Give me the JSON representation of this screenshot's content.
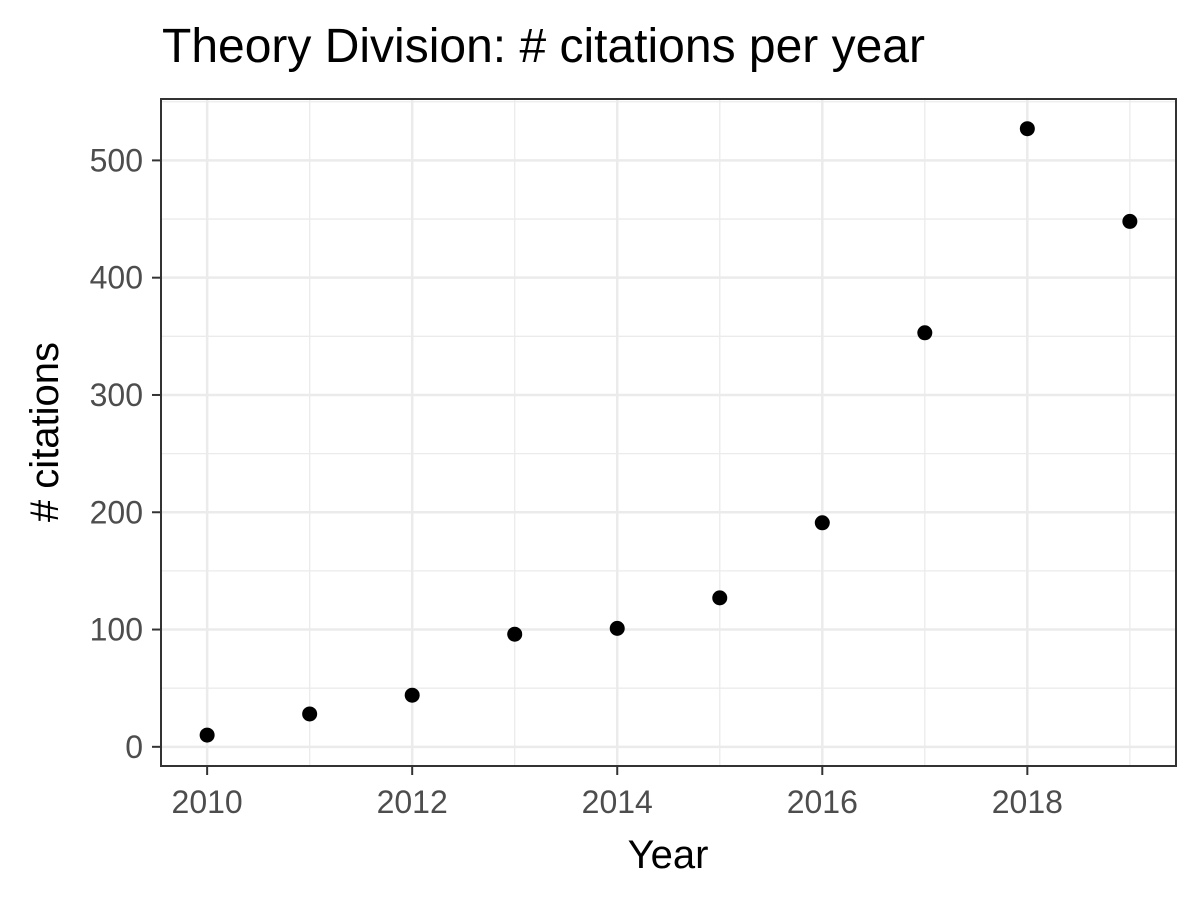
{
  "chart_data": {
    "type": "scatter",
    "title": "Theory Division: # citations per year",
    "xlabel": "Year",
    "ylabel": "# citations",
    "x": [
      2010,
      2011,
      2012,
      2013,
      2014,
      2015,
      2016,
      2017,
      2018,
      2019
    ],
    "y": [
      10,
      28,
      44,
      96,
      101,
      127,
      191,
      353,
      527,
      448
    ],
    "xlim": [
      2009.55,
      2019.45
    ],
    "ylim": [
      -16.35,
      552.35
    ],
    "x_ticks": [
      2010,
      2012,
      2014,
      2016,
      2018
    ],
    "y_ticks": [
      0,
      100,
      200,
      300,
      400,
      500
    ],
    "x_tick_labels": [
      "2010",
      "2012",
      "2014",
      "2016",
      "2018"
    ],
    "y_tick_labels": [
      "0",
      "100",
      "200",
      "300",
      "400",
      "500"
    ],
    "grid": true,
    "legend": "none",
    "colors": {
      "points": "#000000",
      "grid": "#ebebeb",
      "border": "#333333",
      "tick_text": "#4d4d4d",
      "background": "#ffffff"
    }
  }
}
